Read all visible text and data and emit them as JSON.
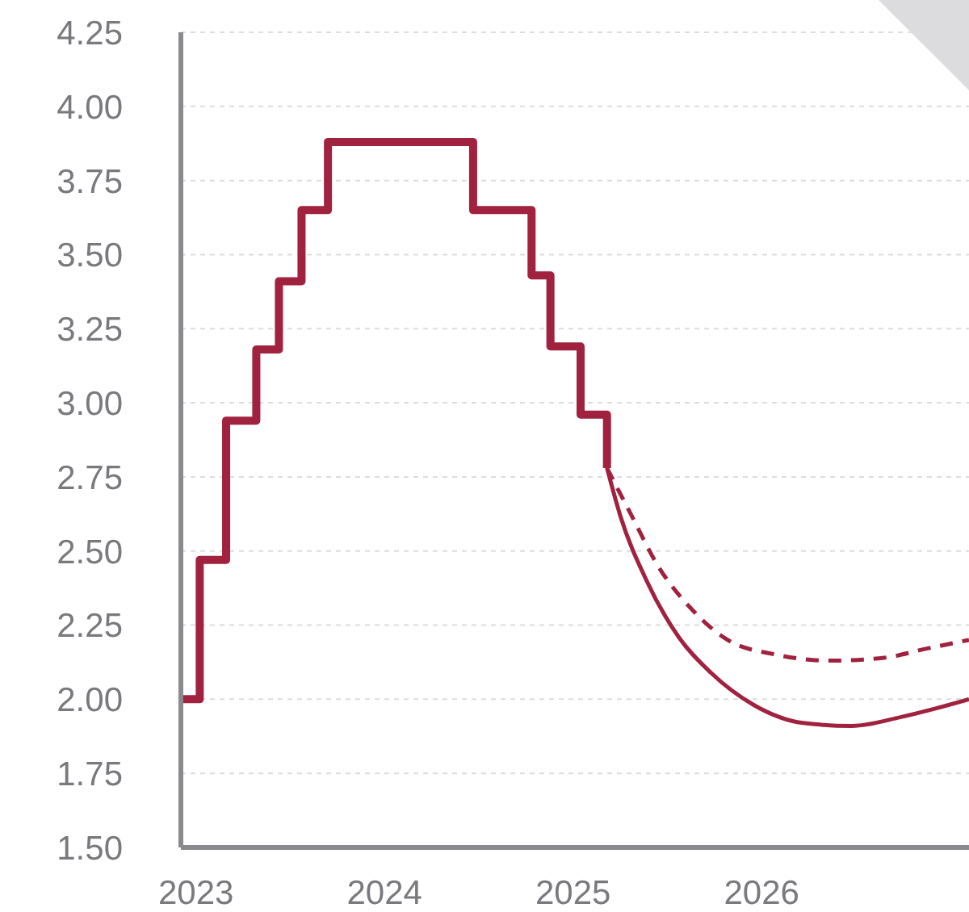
{
  "chart_data": {
    "type": "step",
    "xlim": [
      2022.92,
      2027.1
    ],
    "xticks": [
      2023,
      2024,
      2025,
      2026
    ],
    "ylim": [
      1.5,
      4.25
    ],
    "yticks": [
      {
        "value": 1.5,
        "label": "1.50"
      },
      {
        "value": 1.75,
        "label": "1.75"
      },
      {
        "value": 2,
        "label": "2.00"
      },
      {
        "value": 2.25,
        "label": "2.25"
      },
      {
        "value": 2.5,
        "label": "2.50"
      },
      {
        "value": 2.75,
        "label": "2.75"
      },
      {
        "value": 3,
        "label": "3.00"
      },
      {
        "value": 3.25,
        "label": "3.25"
      },
      {
        "value": 3.5,
        "label": "3.50"
      },
      {
        "value": 3.75,
        "label": "3.75"
      },
      {
        "value": 4,
        "label": "4.00"
      },
      {
        "value": 4.25,
        "label": "4.25"
      }
    ],
    "grid": "y",
    "marker": "none",
    "series": [
      {
        "type": "step",
        "color": "#a0223f",
        "line_style": "solid",
        "x": [
          2022.92,
          2023.02,
          2023.16,
          2023.32,
          2023.44,
          2023.56,
          2023.7,
          2024.47,
          2024.78,
          2024.88,
          2025.04,
          2025.18
        ],
        "values": [
          2.0,
          2.47,
          2.94,
          3.18,
          3.41,
          3.65,
          3.88,
          3.65,
          3.43,
          3.19,
          2.96,
          2.78
        ]
      },
      {
        "type": "line",
        "color": "#a0223f",
        "line_style": "solid",
        "x": [
          2025.18,
          2025.25,
          2025.39,
          2025.56,
          2025.73,
          2025.96,
          2026.22,
          2026.48,
          2026.74,
          2026.93,
          2027.1
        ],
        "values": [
          2.78,
          2.62,
          2.4,
          2.21,
          2.09,
          1.98,
          1.92,
          1.91,
          1.94,
          1.97,
          2.0
        ]
      },
      {
        "type": "line",
        "color": "#a0223f",
        "line_style": "dashed",
        "x": [
          2025.18,
          2025.31,
          2025.45,
          2025.62,
          2025.82,
          2026.08,
          2026.36,
          2026.65,
          2026.87,
          2027.1
        ],
        "values": [
          2.78,
          2.62,
          2.45,
          2.31,
          2.2,
          2.15,
          2.13,
          2.14,
          2.17,
          2.2
        ]
      }
    ]
  }
}
